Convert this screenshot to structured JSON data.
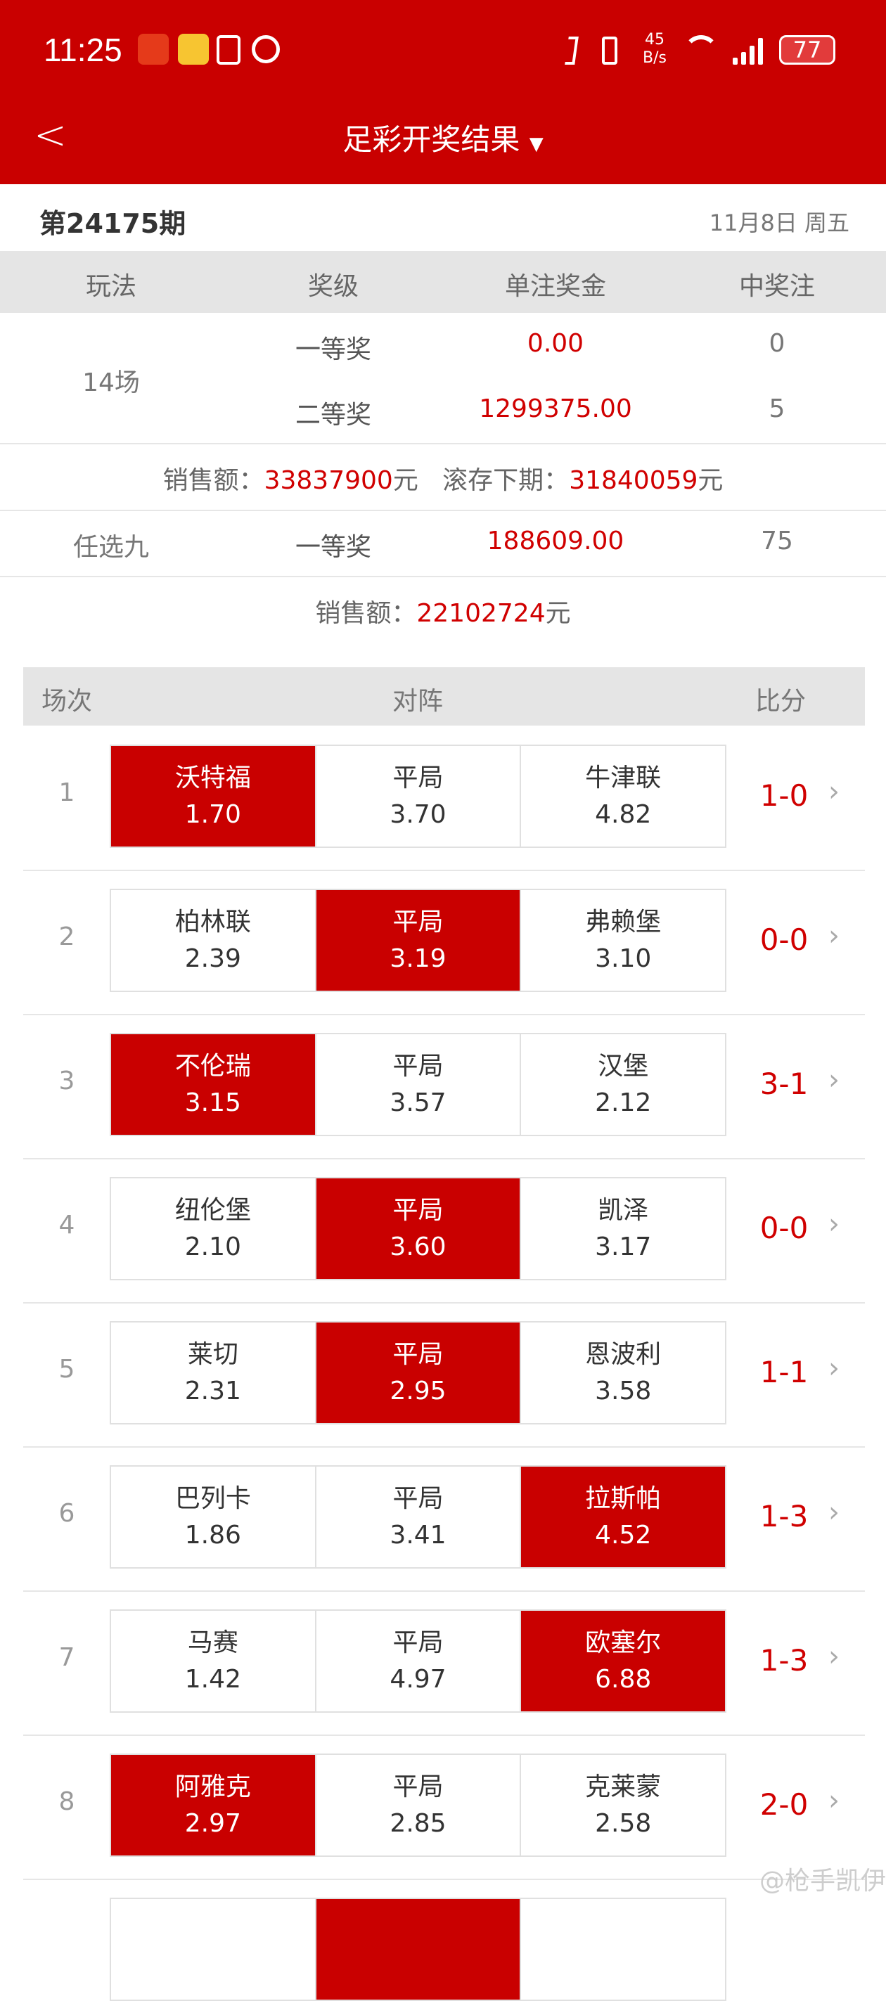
{
  "status_bar": {
    "time": "11:25",
    "speed_value": "45",
    "speed_unit": "B/s",
    "battery": "77",
    "icons": [
      "lottery-app-icon",
      "weibo-icon",
      "nfc-icon",
      "alarm-icon",
      "bluetooth-icon",
      "vibrate-icon",
      "wifi-icon",
      "signal-icon",
      "battery-icon"
    ]
  },
  "nav": {
    "title": "足彩开奖结果",
    "back_icon": "chevron-left-icon",
    "dropdown_icon": "caret-down-icon"
  },
  "issue": {
    "number": "第24175期",
    "date": "11月8日 周五"
  },
  "prize_table": {
    "headers": [
      "玩法",
      "奖级",
      "单注奖金",
      "中奖注"
    ],
    "game14": {
      "name": "14场",
      "rows": [
        {
          "level": "一等奖",
          "amount": "0.00",
          "count": "0"
        },
        {
          "level": "二等奖",
          "amount": "1299375.00",
          "count": "5"
        }
      ],
      "sales_label": "销售额：",
      "sales_value": "33837900",
      "sales_unit": "元",
      "rollover_label": "滚存下期：",
      "rollover_value": "31840059",
      "rollover_unit": "元"
    },
    "game9": {
      "name": "任选九",
      "level": "一等奖",
      "amount": "188609.00",
      "count": "75",
      "sales_label": "销售额：",
      "sales_value": "22102724",
      "sales_unit": "元"
    }
  },
  "matches_header": [
    "场次",
    "对阵",
    "比分"
  ],
  "matches": [
    {
      "index": "1",
      "home": "沃特福",
      "home_odds": "1.70",
      "draw": "平局",
      "draw_odds": "3.70",
      "away": "牛津联",
      "away_odds": "4.82",
      "score": "1-0",
      "result": "home"
    },
    {
      "index": "2",
      "home": "柏林联",
      "home_odds": "2.39",
      "draw": "平局",
      "draw_odds": "3.19",
      "away": "弗赖堡",
      "away_odds": "3.10",
      "score": "0-0",
      "result": "draw"
    },
    {
      "index": "3",
      "home": "不伦瑞",
      "home_odds": "3.15",
      "draw": "平局",
      "draw_odds": "3.57",
      "away": "汉堡",
      "away_odds": "2.12",
      "score": "3-1",
      "result": "home"
    },
    {
      "index": "4",
      "home": "纽伦堡",
      "home_odds": "2.10",
      "draw": "平局",
      "draw_odds": "3.60",
      "away": "凯泽",
      "away_odds": "3.17",
      "score": "0-0",
      "result": "draw"
    },
    {
      "index": "5",
      "home": "莱切",
      "home_odds": "2.31",
      "draw": "平局",
      "draw_odds": "2.95",
      "away": "恩波利",
      "away_odds": "3.58",
      "score": "1-1",
      "result": "draw"
    },
    {
      "index": "6",
      "home": "巴列卡",
      "home_odds": "1.86",
      "draw": "平局",
      "draw_odds": "3.41",
      "away": "拉斯帕",
      "away_odds": "4.52",
      "score": "1-3",
      "result": "away"
    },
    {
      "index": "7",
      "home": "马赛",
      "home_odds": "1.42",
      "draw": "平局",
      "draw_odds": "4.97",
      "away": "欧塞尔",
      "away_odds": "6.88",
      "score": "1-3",
      "result": "away"
    },
    {
      "index": "8",
      "home": "阿雅克",
      "home_odds": "2.97",
      "draw": "平局",
      "draw_odds": "2.85",
      "away": "克莱蒙",
      "away_odds": "2.58",
      "score": "2-0",
      "result": "home"
    }
  ],
  "watermark": "@枪手凯伊",
  "colors": {
    "brand": "#c90000",
    "highlight_text": "#d00000"
  }
}
